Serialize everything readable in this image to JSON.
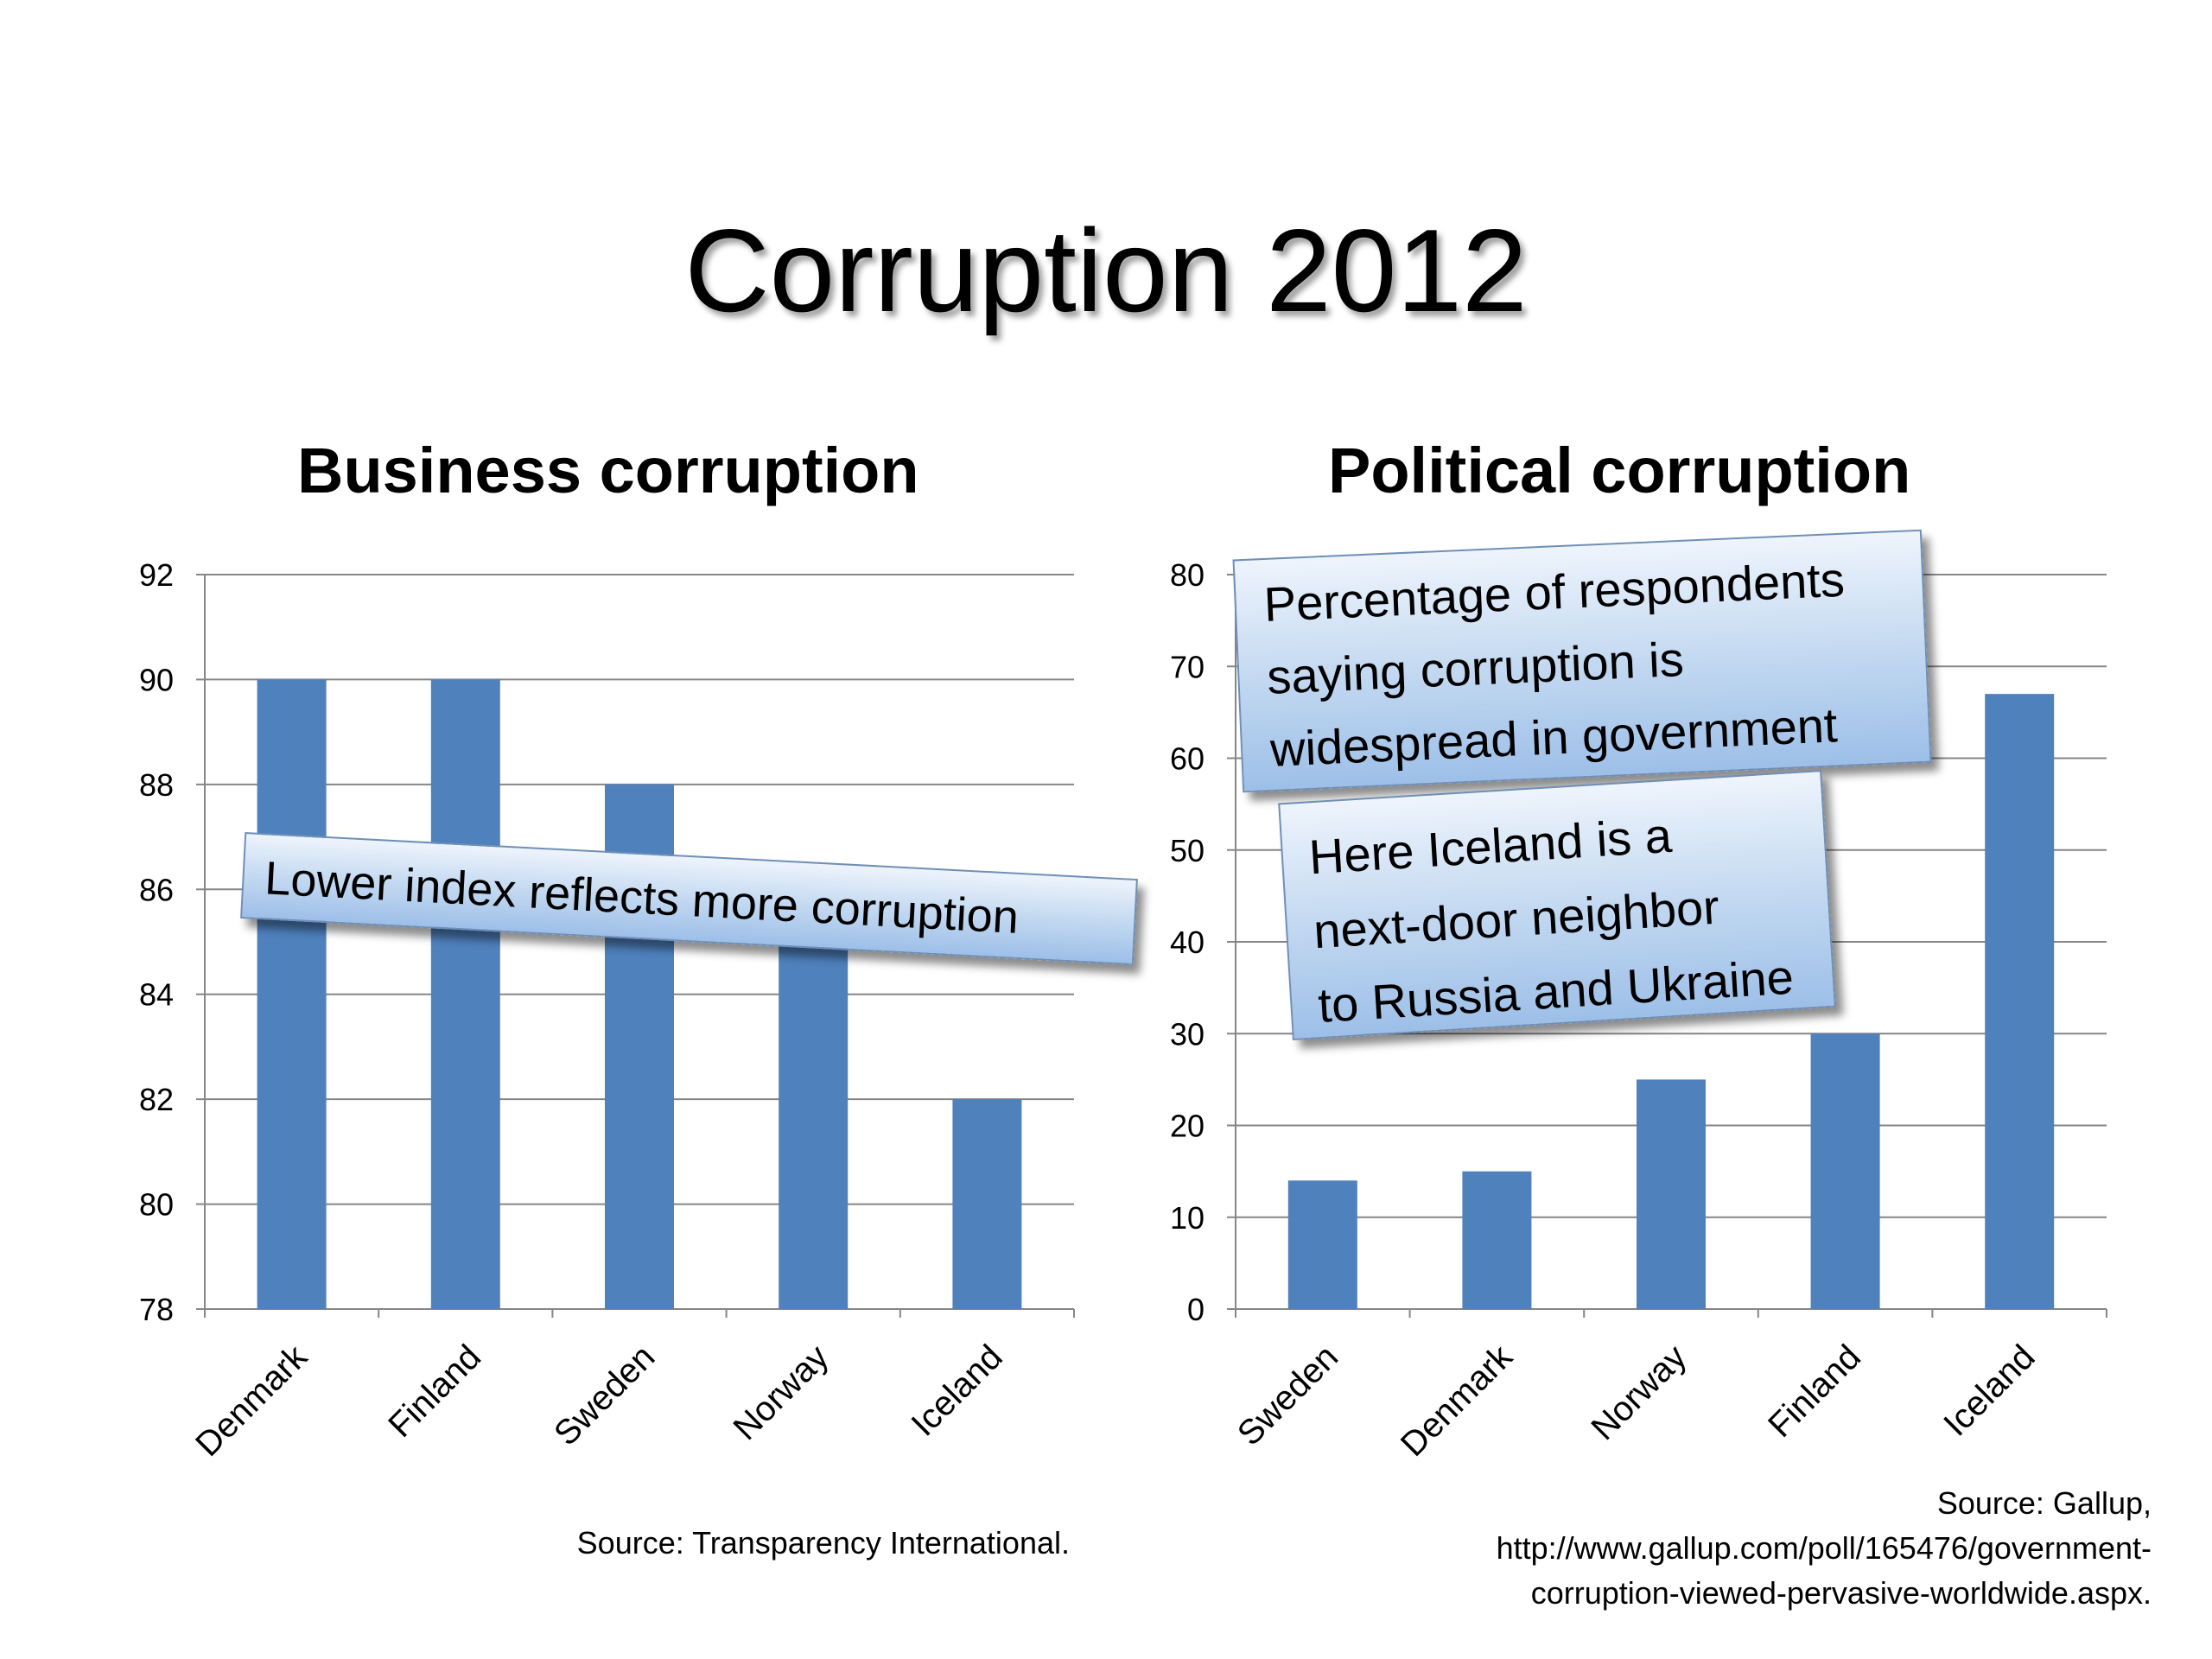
{
  "slide": {
    "title": "Corruption 2012"
  },
  "left_chart": {
    "callout": "Lower index reflects more corruption",
    "source": "Source: Transparency International."
  },
  "right_chart": {
    "callout1_lines": [
      "Percentage of respondents",
      "saying corruption is",
      "widespread in government"
    ],
    "callout2_lines": [
      "Here Iceland is a",
      "next-door neighbor",
      "to Russia and Ukraine"
    ],
    "source_lines": [
      "Source: Gallup,",
      "http://www.gallup.com/poll/165476/government-",
      "corruption-viewed-pervasive-worldwide.aspx."
    ]
  },
  "colors": {
    "bar": "#4f81bd",
    "grid": "#868686",
    "axis": "#868686"
  },
  "chart_data": [
    {
      "type": "bar",
      "title": "Business corruption",
      "categories": [
        "Denmark",
        "Finland",
        "Sweden",
        "Norway",
        "Iceland"
      ],
      "values": [
        90,
        90,
        88,
        85,
        82
      ],
      "yticks": [
        "78",
        "80",
        "82",
        "84",
        "86",
        "88",
        "90",
        "92"
      ],
      "ylim": [
        78,
        92
      ],
      "grid": true,
      "xlabel": "",
      "ylabel": ""
    },
    {
      "type": "bar",
      "title": "Political corruption",
      "categories": [
        "Sweden",
        "Denmark",
        "Norway",
        "Finland",
        "Iceland"
      ],
      "values": [
        14,
        15,
        25,
        30,
        67
      ],
      "yticks": [
        "0",
        "10",
        "20",
        "30",
        "40",
        "50",
        "60",
        "70",
        "80"
      ],
      "ylim": [
        0,
        80
      ],
      "grid": true,
      "xlabel": "",
      "ylabel": ""
    }
  ]
}
